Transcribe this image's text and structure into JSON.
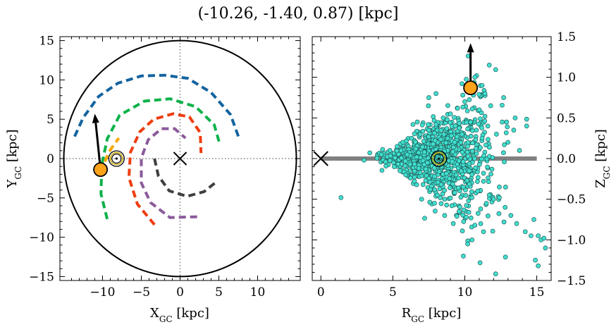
{
  "title": "(-10.26, -1.40, 0.87) [kpc]",
  "chart_data": [
    {
      "type": "line",
      "panel": "left",
      "xlabel_main": "X",
      "xlabel_sub": "GC",
      "xlabel_unit": " [kpc]",
      "ylabel_main": "Y",
      "ylabel_sub": "GC",
      "ylabel_unit": " [kpc]",
      "xlim": [
        -15.5,
        15.5
      ],
      "ylim": [
        -15.5,
        15.5
      ],
      "xticks": [
        -10,
        -5,
        0,
        5,
        10
      ],
      "yticks": [
        -15,
        -10,
        -5,
        0,
        5,
        10,
        15
      ],
      "boundary_circle_radius": 15,
      "galactic_center": [
        0,
        0
      ],
      "sun_position": [
        -8.2,
        0
      ],
      "object_position": [
        -10.26,
        -1.4
      ],
      "velocity_arrow_tip": [
        -11.0,
        5.7
      ],
      "colors": {
        "arrow": "#000000",
        "object": "#ffa31a",
        "sun_ring": "#c9a800",
        "guides": "#808080"
      },
      "series": [
        {
          "color": "#1464a0",
          "points": [
            [
              -13.6,
              2.8
            ],
            [
              -12.5,
              5.2
            ],
            [
              -10.5,
              7.9
            ],
            [
              -8,
              9.6
            ],
            [
              -5,
              10.5
            ],
            [
              -2,
              10.6
            ],
            [
              1,
              10.2
            ],
            [
              4,
              8.4
            ],
            [
              6.5,
              5.6
            ],
            [
              7.6,
              2.6
            ]
          ]
        },
        {
          "color": "#0cb24a",
          "points": [
            [
              -9.4,
              -7.7
            ],
            [
              -10.2,
              -4.5
            ],
            [
              -10.1,
              -0.8
            ],
            [
              -9.4,
              2.5
            ],
            [
              -7.8,
              5.5
            ],
            [
              -4.6,
              7.3
            ],
            [
              -1.3,
              7.6
            ],
            [
              2,
              6.6
            ],
            [
              4.4,
              4.3
            ],
            [
              5.1,
              1.9
            ]
          ]
        },
        {
          "color": "#f5a800",
          "points": [
            [
              -9.7,
              -0.4
            ],
            [
              -9.2,
              0.8
            ],
            [
              -8.5,
              1.8
            ],
            [
              -7.9,
              2.6
            ]
          ]
        },
        {
          "color": "#ef3d10",
          "points": [
            [
              -3.3,
              -8.4
            ],
            [
              -5.5,
              -5.8
            ],
            [
              -6.6,
              -2.4
            ],
            [
              -6.4,
              0.8
            ],
            [
              -5.2,
              3.4
            ],
            [
              -3.4,
              5.0
            ],
            [
              -0.9,
              5.7
            ],
            [
              1.2,
              5.3
            ],
            [
              2.6,
              3.3
            ],
            [
              2.7,
              0.7
            ]
          ]
        },
        {
          "color": "#8a5a9a",
          "points": [
            [
              2.2,
              -7.4
            ],
            [
              -1.3,
              -7.5
            ],
            [
              -3.8,
              -5.6
            ],
            [
              -5,
              -3.1
            ],
            [
              -5,
              0.1
            ],
            [
              -4.1,
              2.4
            ],
            [
              -2.4,
              3.8
            ],
            [
              -0.7,
              3.8
            ],
            [
              0.7,
              2.6
            ]
          ]
        },
        {
          "color": "#3f3f3f",
          "points": [
            [
              -3.3,
              0
            ],
            [
              -2.8,
              -2.2
            ],
            [
              -1.4,
              -4.1
            ],
            [
              0.9,
              -4.8
            ],
            [
              3.1,
              -4.2
            ],
            [
              4.5,
              -3.1
            ]
          ]
        }
      ]
    },
    {
      "type": "scatter",
      "panel": "right",
      "xlabel_main": "R",
      "xlabel_sub": "GC",
      "xlabel_unit": " [kpc]",
      "ylabel_main": "Z",
      "ylabel_sub": "GC",
      "ylabel_unit": " [kpc]",
      "xlim": [
        -0.6,
        16.0
      ],
      "ylim": [
        -1.5,
        1.5
      ],
      "xticks": [
        0,
        5,
        10,
        15
      ],
      "yticks": [
        -1.5,
        -1.0,
        -0.5,
        0.0,
        0.5,
        1.0,
        1.5
      ],
      "ytick_labels": [
        "−1.5",
        "−1.0",
        "−0.5",
        "0.0",
        "0.5",
        "1.0",
        "1.5"
      ],
      "galactic_center": [
        0,
        0
      ],
      "sun_position": [
        8.2,
        0.0
      ],
      "object_position": [
        10.4,
        0.87
      ],
      "velocity_arrow_tip": [
        10.4,
        1.42
      ],
      "plane_line": [
        0,
        15
      ],
      "colors": {
        "points": "#40e0d0",
        "edge": "#1f5a55",
        "plane": "#808080",
        "object": "#ffa31a",
        "sun_ring": "#c9a800"
      },
      "points": [
        [
          1.4,
          -0.48
        ],
        [
          3.4,
          0.07
        ],
        [
          3.0,
          -0.02
        ],
        [
          4.2,
          0.05
        ],
        [
          4.5,
          -0.04
        ],
        [
          4.8,
          0.1
        ],
        [
          5.1,
          -0.1
        ],
        [
          5.3,
          0.15
        ],
        [
          5.5,
          -0.15
        ],
        [
          5.7,
          0.2
        ],
        [
          5.9,
          -0.2
        ],
        [
          6.0,
          0.05
        ],
        [
          6.2,
          -0.07
        ],
        [
          6.3,
          0.25
        ],
        [
          6.5,
          -0.28
        ],
        [
          6.6,
          0.12
        ],
        [
          6.8,
          -0.12
        ],
        [
          6.9,
          0.3
        ],
        [
          7.1,
          -0.32
        ],
        [
          7.2,
          0.08
        ],
        [
          7.4,
          -0.05
        ],
        [
          7.5,
          0.35
        ],
        [
          7.6,
          -0.38
        ],
        [
          7.8,
          0.18
        ],
        [
          7.9,
          -0.22
        ],
        [
          8.0,
          0.42
        ],
        [
          8.1,
          -0.45
        ],
        [
          8.3,
          0.1
        ],
        [
          8.4,
          -0.1
        ],
        [
          8.5,
          0.5
        ],
        [
          8.6,
          -0.5
        ],
        [
          8.8,
          0.25
        ],
        [
          8.9,
          -0.3
        ],
        [
          9.0,
          0.55
        ],
        [
          9.1,
          -0.58
        ],
        [
          9.3,
          0.2
        ],
        [
          9.4,
          -0.2
        ],
        [
          9.5,
          0.62
        ],
        [
          9.6,
          -0.65
        ],
        [
          9.8,
          0.3
        ],
        [
          9.9,
          -0.35
        ],
        [
          10.0,
          0.7
        ],
        [
          10.1,
          -0.72
        ],
        [
          10.2,
          0.15
        ],
        [
          10.3,
          -0.15
        ],
        [
          10.4,
          0.45
        ],
        [
          10.5,
          -0.48
        ],
        [
          10.6,
          0.78
        ],
        [
          10.7,
          -0.82
        ],
        [
          10.8,
          0.35
        ],
        [
          10.9,
          -0.4
        ],
        [
          11.0,
          0.6
        ],
        [
          11.1,
          -0.62
        ],
        [
          11.2,
          0.25
        ],
        [
          11.3,
          -0.28
        ],
        [
          11.4,
          0.52
        ],
        [
          11.5,
          -0.55
        ],
        [
          11.6,
          0.4
        ],
        [
          11.7,
          -0.45
        ],
        [
          11.8,
          0.65
        ],
        [
          12.0,
          -0.5
        ],
        [
          12.2,
          0.3
        ],
        [
          12.4,
          -0.35
        ],
        [
          12.6,
          0.45
        ],
        [
          12.8,
          -0.6
        ],
        [
          13.0,
          0.2
        ],
        [
          13.2,
          -0.7
        ],
        [
          13.4,
          0.35
        ],
        [
          13.6,
          -0.8
        ],
        [
          13.8,
          0.1
        ],
        [
          14.2,
          -0.9
        ],
        [
          14.6,
          -0.95
        ],
        [
          14.8,
          -0.75
        ],
        [
          15.1,
          -0.95
        ],
        [
          15.3,
          -1.0
        ],
        [
          15.5,
          -0.98
        ],
        [
          15.6,
          -1.1
        ],
        [
          14.9,
          -1.25
        ],
        [
          15.1,
          -1.32
        ],
        [
          10.2,
          -1.05
        ],
        [
          9.9,
          -1.2
        ],
        [
          10.5,
          -1.0
        ],
        [
          11.7,
          1.15
        ],
        [
          10.7,
          1.0
        ],
        [
          8.0,
          0.8
        ],
        [
          7.5,
          0.75
        ],
        [
          11.4,
          0.8
        ],
        [
          12.4,
          -0.48
        ],
        [
          12.9,
          0.45
        ],
        [
          13.5,
          0.5
        ],
        [
          14.3,
          0.4
        ],
        [
          12.7,
          0.75
        ],
        [
          11.2,
          0.9
        ],
        [
          6.7,
          0.45
        ],
        [
          6.4,
          0.42
        ],
        [
          7.0,
          -0.5
        ],
        [
          7.9,
          -0.55
        ],
        [
          8.6,
          -0.7
        ],
        [
          9.2,
          -0.8
        ],
        [
          11.3,
          -0.9
        ]
      ]
    }
  ]
}
